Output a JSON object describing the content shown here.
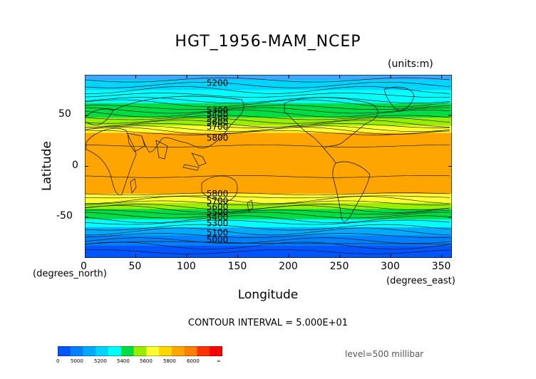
{
  "title": "HGT_1956-MAM_NCEP",
  "units": "(units:m)",
  "y_axis": {
    "label": "Latitude",
    "ticks": [
      "50",
      "0",
      "-50"
    ],
    "tick_values": [
      50,
      0,
      -50
    ],
    "range": [
      -90,
      90
    ],
    "units_label": "(degrees_north)"
  },
  "x_axis": {
    "label": "Longitude",
    "ticks": [
      "0",
      "50",
      "100",
      "150",
      "200",
      "250",
      "300",
      "350"
    ],
    "tick_values": [
      0,
      50,
      100,
      150,
      200,
      250,
      300,
      350
    ],
    "range": [
      0,
      360
    ],
    "units_label": "(degrees_east)"
  },
  "contour_interval": "CONTOUR INTERVAL = 5.000E+01",
  "level": "level=500 millibar",
  "contour_labels": [
    {
      "text": "5200",
      "lat": 82
    },
    {
      "text": "5300",
      "lat": 55
    },
    {
      "text": "5400",
      "lat": 51
    },
    {
      "text": "5500",
      "lat": 47
    },
    {
      "text": "5600",
      "lat": 43
    },
    {
      "text": "5700",
      "lat": 39
    },
    {
      "text": "5800",
      "lat": 28
    },
    {
      "text": "5800",
      "lat": -27
    },
    {
      "text": "5700",
      "lat": -34
    },
    {
      "text": "5600",
      "lat": -40
    },
    {
      "text": "5500",
      "lat": -45
    },
    {
      "text": "5400",
      "lat": -50
    },
    {
      "text": "5300",
      "lat": -56
    },
    {
      "text": "5100",
      "lat": -65
    },
    {
      "text": "5000",
      "lat": -72
    }
  ],
  "bands": [
    {
      "lat_top": 90,
      "lat_bottom": 85,
      "color": "#3fa8ff"
    },
    {
      "lat_top": 85,
      "lat_bottom": 75,
      "color": "#00d5ff"
    },
    {
      "lat_top": 75,
      "lat_bottom": 62,
      "color": "#00ffff"
    },
    {
      "lat_top": 62,
      "lat_bottom": 48,
      "color": "#00dd44"
    },
    {
      "lat_top": 48,
      "lat_bottom": 40,
      "color": "#99ee00"
    },
    {
      "lat_top": 40,
      "lat_bottom": 33,
      "color": "#ffff33"
    },
    {
      "lat_top": 33,
      "lat_bottom": -27,
      "color": "#ffa500"
    },
    {
      "lat_top": -27,
      "lat_bottom": -36,
      "color": "#ffff33"
    },
    {
      "lat_top": -36,
      "lat_bottom": -42,
      "color": "#99ee00"
    },
    {
      "lat_top": -42,
      "lat_bottom": -52,
      "color": "#00dd44"
    },
    {
      "lat_top": -52,
      "lat_bottom": -60,
      "color": "#00ffff"
    },
    {
      "lat_top": -60,
      "lat_bottom": -68,
      "color": "#00aaff"
    },
    {
      "lat_top": -68,
      "lat_bottom": -78,
      "color": "#0080ff"
    },
    {
      "lat_top": -78,
      "lat_bottom": -90,
      "color": "#0055ff"
    }
  ],
  "colorbar": {
    "colors": [
      "#0055ff",
      "#0080ff",
      "#00aaff",
      "#00d5ff",
      "#00ffff",
      "#00dd44",
      "#99ee00",
      "#ffff33",
      "#ffd700",
      "#ffa500",
      "#ff7f00",
      "#ff3300",
      "#ff0000"
    ],
    "labels": [
      "0",
      "5000",
      "5200",
      "5400",
      "5600",
      "5800",
      "6000",
      "∞"
    ]
  }
}
